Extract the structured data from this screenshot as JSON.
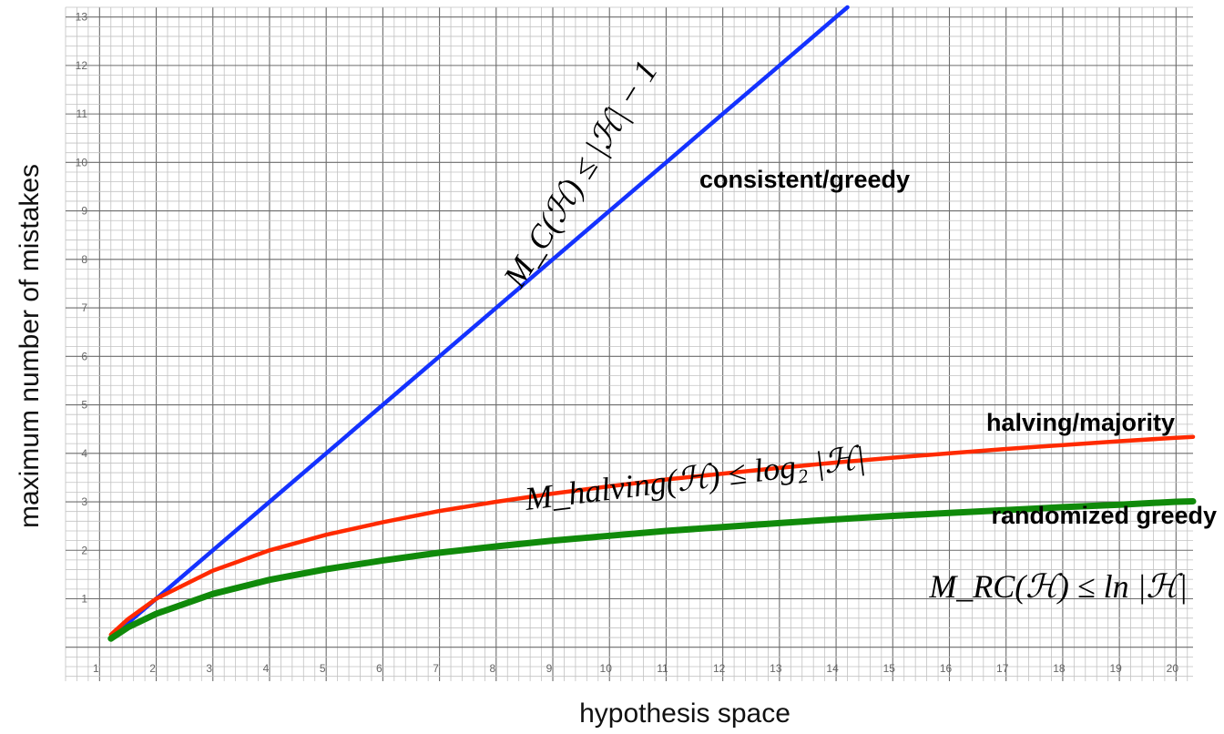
{
  "chart_data": {
    "type": "line",
    "xlabel": "hypothesis space",
    "ylabel": "maximum number of mistakes",
    "xlim": [
      0.4,
      20.3
    ],
    "ylim": [
      -0.7,
      13.2
    ],
    "grid": true,
    "x_ticks": [
      1,
      2,
      3,
      4,
      5,
      6,
      7,
      8,
      9,
      10,
      11,
      12,
      13,
      14,
      15,
      16,
      17,
      18,
      19,
      20
    ],
    "y_ticks": [
      1,
      2,
      3,
      4,
      5,
      6,
      7,
      8,
      9,
      10,
      11,
      12,
      13
    ],
    "series": [
      {
        "name": "consistent/greedy",
        "formula": "M_C(ℋ) ≤ |ℋ| − 1",
        "color": "#1432ff",
        "x": [
          1.2,
          2,
          3,
          4,
          5,
          6,
          7,
          8,
          9,
          10,
          11,
          12,
          13,
          14,
          14.2
        ],
        "y": [
          0.2,
          1,
          2,
          3,
          4,
          5,
          6,
          7,
          8,
          9,
          10,
          11,
          12,
          13,
          13.2
        ]
      },
      {
        "name": "halving/majority",
        "formula": "M_halving(ℋ) ≤ log₂ |ℋ|",
        "color": "#ff2a00",
        "x": [
          1.2,
          1.5,
          2,
          3,
          4,
          5,
          6,
          7,
          8,
          9,
          10,
          11,
          12,
          13,
          14,
          15,
          16,
          17,
          18,
          19,
          20,
          20.3
        ],
        "y": [
          0.26,
          0.58,
          1,
          1.58,
          2,
          2.32,
          2.58,
          2.81,
          3,
          3.17,
          3.32,
          3.46,
          3.58,
          3.7,
          3.81,
          3.91,
          4,
          4.09,
          4.17,
          4.25,
          4.32,
          4.34
        ]
      },
      {
        "name": "randomized greedy",
        "formula": "M_RC(ℋ) ≤ ln |ℋ|",
        "color": "#108a0a",
        "x": [
          1.2,
          1.5,
          2,
          3,
          4,
          5,
          6,
          7,
          8,
          9,
          10,
          11,
          12,
          13,
          14,
          15,
          16,
          17,
          18,
          19,
          20,
          20.3
        ],
        "y": [
          0.18,
          0.41,
          0.69,
          1.1,
          1.39,
          1.61,
          1.79,
          1.95,
          2.08,
          2.2,
          2.3,
          2.4,
          2.48,
          2.56,
          2.64,
          2.71,
          2.77,
          2.83,
          2.89,
          2.94,
          3,
          3.01
        ]
      }
    ]
  }
}
